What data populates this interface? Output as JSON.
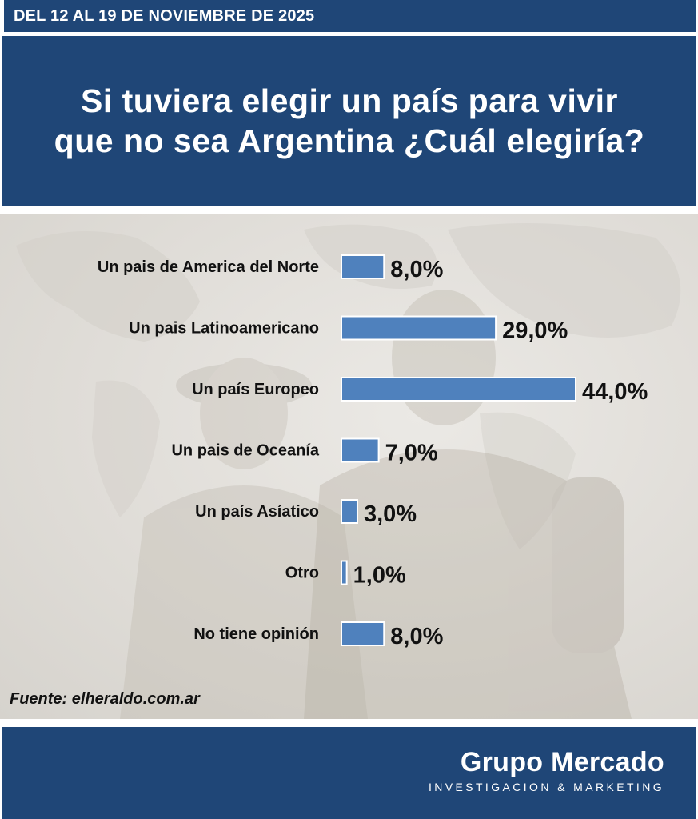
{
  "header": {
    "date_range": "DEL 12 AL 19 DE NOVIEMBRE DE 2025"
  },
  "question": {
    "line1": "Si tuviera elegir un país para vivir",
    "line2": "que no sea Argentina ¿Cuál elegiría?"
  },
  "chart_data": {
    "type": "bar",
    "orientation": "horizontal",
    "categories": [
      "Un pais de America del Norte",
      "Un pais Latinoamericano",
      "Un país Europeo",
      "Un pais de Oceanía",
      "Un país Asíatico",
      "Otro",
      "No tiene opinión"
    ],
    "values": [
      8.0,
      29.0,
      44.0,
      7.0,
      3.0,
      1.0,
      8.0
    ],
    "value_labels": [
      "8,0%",
      "29,0%",
      "44,0%",
      "7,0%",
      "3,0%",
      "1,0%",
      "8,0%"
    ],
    "unit": "%",
    "xlim": [
      0,
      44
    ],
    "bar_color": "#4f81bd",
    "bar_border_color": "#ffffff",
    "grid": false,
    "legend": "none"
  },
  "source": {
    "text": "Fuente: elheraldo.com.ar"
  },
  "footer": {
    "brand": "Grupo Mercado",
    "tagline": "INVESTIGACION & MARKETING"
  },
  "colors": {
    "primary": "#1f4677",
    "text_dark": "#111111"
  }
}
